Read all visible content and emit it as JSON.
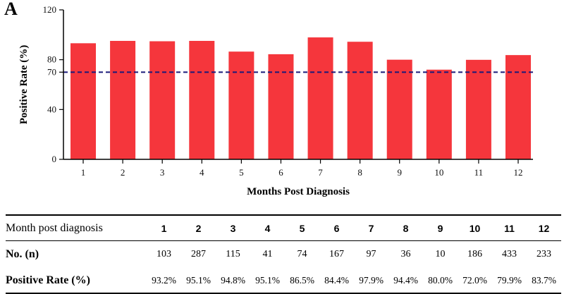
{
  "panel_label": "A",
  "chart_data": {
    "type": "bar",
    "categories": [
      "1",
      "2",
      "3",
      "4",
      "5",
      "6",
      "7",
      "8",
      "9",
      "10",
      "11",
      "12"
    ],
    "values": [
      93.2,
      95.1,
      94.8,
      95.1,
      86.5,
      84.4,
      97.9,
      94.4,
      80.0,
      72.0,
      79.9,
      83.7
    ],
    "xlabel": "Months Post Diagnosis",
    "ylabel": "Positive Rate (%)",
    "ylim": [
      0,
      120
    ],
    "yticks": [
      0,
      40,
      70,
      80,
      120
    ],
    "reference_line": 70,
    "bar_color": "#f5363c",
    "reference_line_color": "#1a1a7a"
  },
  "table": {
    "header_label": "Month post diagnosis",
    "months": [
      "1",
      "2",
      "3",
      "4",
      "5",
      "6",
      "7",
      "8",
      "9",
      "10",
      "11",
      "12"
    ],
    "n_label": "No. (n)",
    "n_values": [
      "103",
      "287",
      "115",
      "41",
      "74",
      "167",
      "97",
      "36",
      "10",
      "186",
      "433",
      "233"
    ],
    "rate_label": "Positive Rate (%)",
    "rate_values": [
      "93.2%",
      "95.1%",
      "94.8%",
      "95.1%",
      "86.5%",
      "84.4%",
      "97.9%",
      "94.4%",
      "80.0%",
      "72.0%",
      "79.9%",
      "83.7%"
    ]
  }
}
